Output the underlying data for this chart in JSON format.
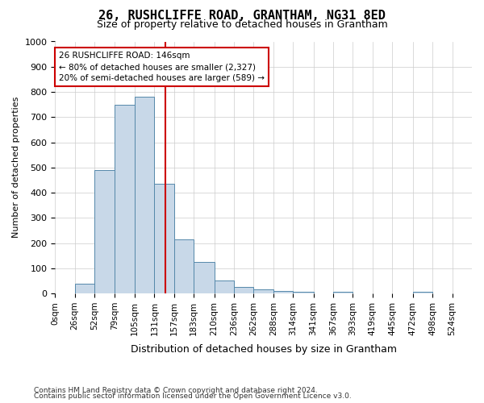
{
  "title": "26, RUSHCLIFFE ROAD, GRANTHAM, NG31 8ED",
  "subtitle": "Size of property relative to detached houses in Grantham",
  "xlabel": "Distribution of detached houses by size in Grantham",
  "ylabel": "Number of detached properties",
  "bar_color": "#c8d8e8",
  "bar_edge_color": "#5588aa",
  "background_color": "#ffffff",
  "grid_color": "#cccccc",
  "annotation_box_color": "#cc0000",
  "vline_color": "#cc0000",
  "vline_x": 146,
  "categories": [
    "0sqm",
    "26sqm",
    "52sqm",
    "79sqm",
    "105sqm",
    "131sqm",
    "157sqm",
    "183sqm",
    "210sqm",
    "236sqm",
    "262sqm",
    "288sqm",
    "314sqm",
    "341sqm",
    "367sqm",
    "393sqm",
    "419sqm",
    "445sqm",
    "472sqm",
    "498sqm",
    "524sqm"
  ],
  "bin_edges": [
    0,
    26,
    52,
    79,
    105,
    131,
    157,
    183,
    210,
    236,
    262,
    288,
    314,
    341,
    367,
    393,
    419,
    445,
    472,
    498,
    524,
    550
  ],
  "values": [
    0,
    40,
    490,
    750,
    780,
    435,
    215,
    125,
    50,
    25,
    15,
    10,
    5,
    0,
    5,
    0,
    0,
    0,
    5,
    0,
    0
  ],
  "annotation_text": "26 RUSHCLIFFE ROAD: 146sqm\n← 80% of detached houses are smaller (2,327)\n20% of semi-detached houses are larger (589) →",
  "footnote1": "Contains HM Land Registry data © Crown copyright and database right 2024.",
  "footnote2": "Contains public sector information licensed under the Open Government Licence v3.0.",
  "ylim": [
    0,
    1000
  ],
  "yticks": [
    0,
    100,
    200,
    300,
    400,
    500,
    600,
    700,
    800,
    900,
    1000
  ]
}
